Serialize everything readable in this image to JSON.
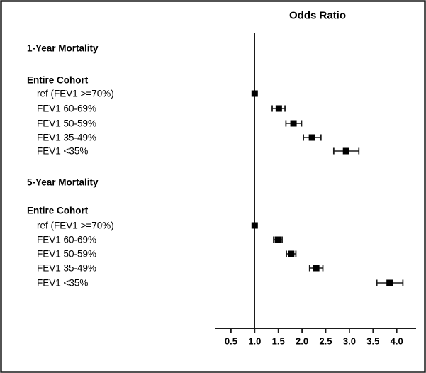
{
  "chart_data": {
    "type": "forest",
    "title": "Odds Ratio",
    "x_axis": {
      "range": [
        0.16,
        4.41
      ],
      "reference_line": 1.0,
      "ticks": [
        {
          "value": 0.5,
          "label": "0.5"
        },
        {
          "value": 1.0,
          "label": "1.0"
        },
        {
          "value": 1.5,
          "label": "1.5"
        },
        {
          "value": 2.0,
          "label": "2.0"
        },
        {
          "value": 2.5,
          "label": "2.5"
        },
        {
          "value": 3.0,
          "label": "3.0"
        },
        {
          "value": 3.5,
          "label": "3.5"
        },
        {
          "value": 4.0,
          "label": "4.0"
        }
      ]
    },
    "sections": [
      {
        "header": "1-Year Mortality",
        "subheader": "Entire Cohort",
        "rows": [
          {
            "label": "ref (FEV1 >=70%)",
            "odds_ratio": 1.0,
            "ci_low": null,
            "ci_high": null,
            "is_reference": true
          },
          {
            "label": "FEV1 60-69%",
            "odds_ratio": 1.51,
            "ci_low": 1.37,
            "ci_high": 1.64,
            "is_reference": false
          },
          {
            "label": "FEV1 50-59%",
            "odds_ratio": 1.82,
            "ci_low": 1.66,
            "ci_high": 1.99,
            "is_reference": false
          },
          {
            "label": "FEV1 35-49%",
            "odds_ratio": 2.21,
            "ci_low": 2.03,
            "ci_high": 2.4,
            "is_reference": false
          },
          {
            "label": "FEV1 <35%",
            "odds_ratio": 2.93,
            "ci_low": 2.67,
            "ci_high": 3.2,
            "is_reference": false
          }
        ]
      },
      {
        "header": "5-Year Mortality",
        "subheader": "Entire Cohort",
        "rows": [
          {
            "label": "ref (FEV1 >=70%)",
            "odds_ratio": 1.0,
            "ci_low": null,
            "ci_high": null,
            "is_reference": true
          },
          {
            "label": "FEV1 60-69%",
            "odds_ratio": 1.49,
            "ci_low": 1.4,
            "ci_high": 1.58,
            "is_reference": false
          },
          {
            "label": "FEV1 50-59%",
            "odds_ratio": 1.77,
            "ci_low": 1.67,
            "ci_high": 1.87,
            "is_reference": false
          },
          {
            "label": "FEV1 35-49%",
            "odds_ratio": 2.3,
            "ci_low": 2.16,
            "ci_high": 2.44,
            "is_reference": false
          },
          {
            "label": "FEV1 <35%",
            "odds_ratio": 3.85,
            "ci_low": 3.58,
            "ci_high": 4.13,
            "is_reference": false
          }
        ]
      }
    ],
    "colors": {
      "marker": "#000000",
      "line": "#1a1a1a",
      "text": "#000000",
      "background": "#ffffff",
      "border": "#1a1a1a"
    }
  }
}
